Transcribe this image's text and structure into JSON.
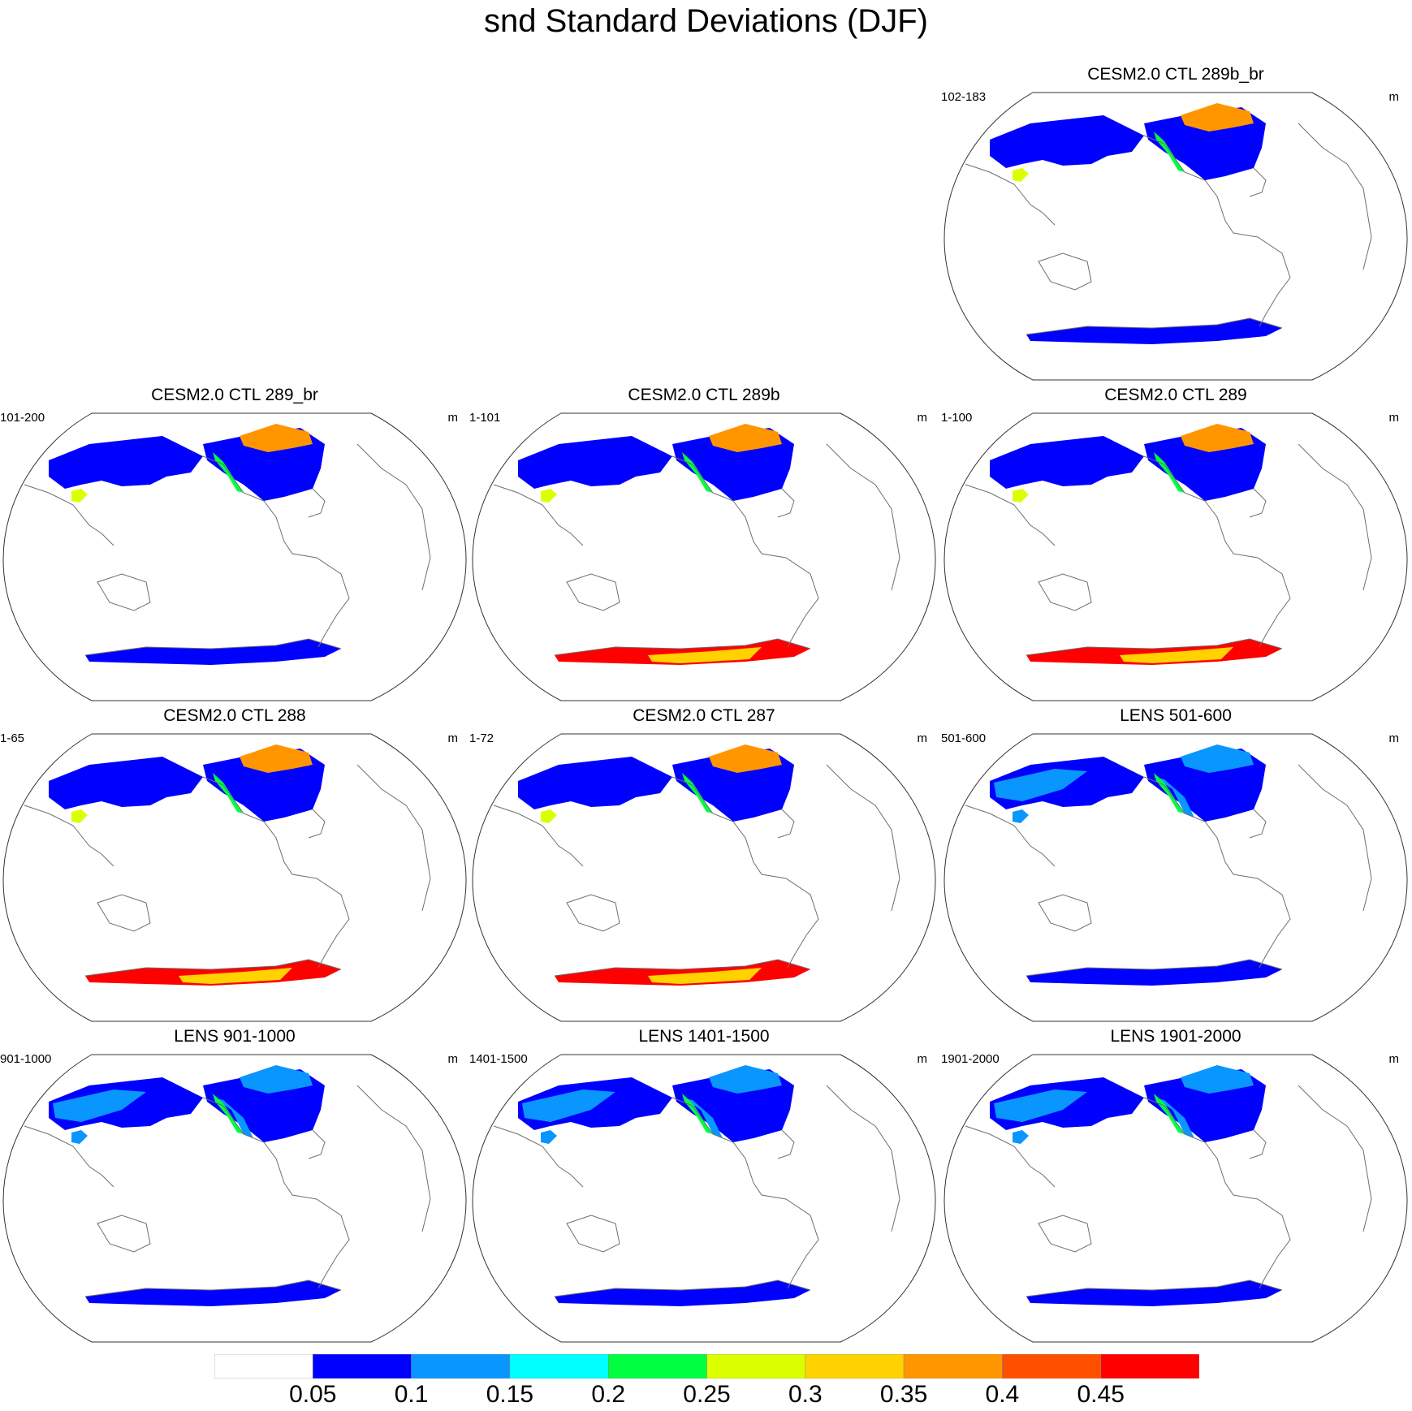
{
  "title": "snd Standard Deviations (DJF)",
  "panels": [
    {
      "title": "CESM2.0 CTL 289b_br",
      "years": "102-183",
      "units": "m",
      "ant_level": 1,
      "arctic_level": 7
    },
    {
      "title": "CESM2.0 CTL 289_br",
      "years": "101-200",
      "units": "m",
      "ant_level": 1,
      "arctic_level": 7
    },
    {
      "title": "CESM2.0 CTL 289b",
      "years": "1-101",
      "units": "m",
      "ant_level": 9,
      "arctic_level": 7
    },
    {
      "title": "CESM2.0 CTL 289",
      "years": "1-100",
      "units": "m",
      "ant_level": 9,
      "arctic_level": 7
    },
    {
      "title": "CESM2.0 CTL 288",
      "years": "1-65",
      "units": "m",
      "ant_level": 9,
      "arctic_level": 7
    },
    {
      "title": "CESM2.0 CTL 287",
      "years": "1-72",
      "units": "m",
      "ant_level": 9,
      "arctic_level": 7
    },
    {
      "title": "LENS 501-600",
      "years": "501-600",
      "units": "m",
      "ant_level": 1,
      "arctic_level": 2
    },
    {
      "title": "LENS 901-1000",
      "years": "901-1000",
      "units": "m",
      "ant_level": 1,
      "arctic_level": 2
    },
    {
      "title": "LENS 1401-1500",
      "years": "1401-1500",
      "units": "m",
      "ant_level": 1,
      "arctic_level": 2
    },
    {
      "title": "LENS 1901-2000",
      "years": "1901-2000",
      "units": "m",
      "ant_level": 1,
      "arctic_level": 2
    }
  ],
  "colorbar": {
    "colors": [
      "#ffffff",
      "#0000ff",
      "#0a96ff",
      "#00ffff",
      "#00ff40",
      "#dcff00",
      "#ffd200",
      "#ff9600",
      "#ff5000",
      "#ff0000"
    ],
    "labels": [
      "0.05",
      "0.1",
      "0.15",
      "0.2",
      "0.25",
      "0.3",
      "0.35",
      "0.4",
      "0.45"
    ]
  }
}
